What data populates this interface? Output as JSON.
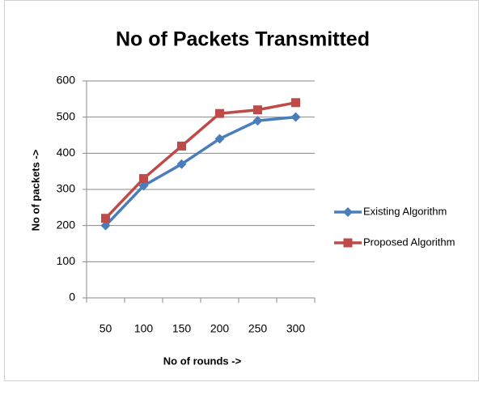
{
  "chart_data": {
    "type": "line",
    "title": "No of Packets Transmitted",
    "x_label": "No of rounds ->",
    "y_label": "No of packets ->",
    "categories": [
      "50",
      "100",
      "150",
      "200",
      "250",
      "300"
    ],
    "series": [
      {
        "name": "Existing Algorithm",
        "color": "#4a7ebb",
        "marker": "diamond",
        "values": [
          200,
          310,
          370,
          440,
          490,
          500
        ]
      },
      {
        "name": "Proposed Algorithm",
        "color": "#be4b48",
        "marker": "square",
        "values": [
          220,
          330,
          420,
          510,
          520,
          540
        ]
      }
    ],
    "ylim": [
      0,
      600
    ],
    "yticks": [
      0,
      100,
      200,
      300,
      400,
      500,
      600
    ],
    "grid": true,
    "legend": "right"
  }
}
